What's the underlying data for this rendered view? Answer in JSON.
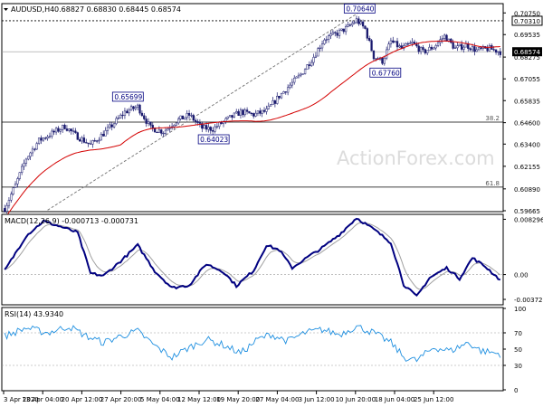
{
  "header": {
    "symbol": "AUDUSD,H4",
    "ohlc": "0.68827 0.68830 0.68445 0.68574"
  },
  "watermark": "ActionForex.com",
  "colors": {
    "up": "#1a1a6e",
    "down": "#1a1a6e",
    "ma": "#d40000",
    "macd": "#000080",
    "signal": "#a0a0a0",
    "rsi": "#1e8fe0",
    "grid": "#c8c8c8",
    "level": "#808080",
    "trend": "#707070"
  },
  "chart_data": [
    {
      "type": "candlestick",
      "title": "AUDUSD,H4",
      "ylim": [
        0.59665,
        0.7122
      ],
      "yticks": [
        "0.70750",
        "0.69535",
        "0.68275",
        "0.67055",
        "0.65835",
        "0.64600",
        "0.63400",
        "0.62155",
        "0.60890",
        "0.59665"
      ],
      "current_price": "0.68574",
      "ref_price": "0.70310",
      "xticks": [
        "3 Apr 2020",
        "13 Apr 04:00",
        "20 Apr 12:00",
        "27 Apr 20:00",
        "5 May 04:00",
        "12 May 12:00",
        "19 May 20:00",
        "27 May 04:00",
        "3 Jun 12:00",
        "10 Jun 20:00",
        "18 Jun 04:00",
        "25 Jun 12:00"
      ],
      "anchors": [
        {
          "i": 0,
          "p": 0.598
        },
        {
          "i": 5,
          "p": 0.611
        },
        {
          "i": 10,
          "p": 0.626
        },
        {
          "i": 16,
          "p": 0.636
        },
        {
          "i": 22,
          "p": 0.64
        },
        {
          "i": 28,
          "p": 0.644
        },
        {
          "i": 33,
          "p": 0.639
        },
        {
          "i": 40,
          "p": 0.6335
        },
        {
          "i": 48,
          "p": 0.642
        },
        {
          "i": 56,
          "p": 0.652
        },
        {
          "i": 62,
          "p": 0.655
        },
        {
          "i": 68,
          "p": 0.643
        },
        {
          "i": 74,
          "p": 0.641
        },
        {
          "i": 80,
          "p": 0.647
        },
        {
          "i": 86,
          "p": 0.6503
        },
        {
          "i": 92,
          "p": 0.643
        },
        {
          "i": 97,
          "p": 0.6425
        },
        {
          "i": 104,
          "p": 0.648
        },
        {
          "i": 110,
          "p": 0.652
        },
        {
          "i": 116,
          "p": 0.6505
        },
        {
          "i": 122,
          "p": 0.6525
        },
        {
          "i": 128,
          "p": 0.661
        },
        {
          "i": 133,
          "p": 0.667
        },
        {
          "i": 138,
          "p": 0.673
        },
        {
          "i": 144,
          "p": 0.683
        },
        {
          "i": 149,
          "p": 0.693
        },
        {
          "i": 155,
          "p": 0.696
        },
        {
          "i": 160,
          "p": 0.6995
        },
        {
          "i": 164,
          "p": 0.7035
        },
        {
          "i": 168,
          "p": 0.6985
        },
        {
          "i": 172,
          "p": 0.683
        },
        {
          "i": 176,
          "p": 0.6805
        },
        {
          "i": 180,
          "p": 0.6915
        },
        {
          "i": 185,
          "p": 0.6875
        },
        {
          "i": 190,
          "p": 0.6905
        },
        {
          "i": 195,
          "p": 0.6855
        },
        {
          "i": 200,
          "p": 0.6885
        },
        {
          "i": 205,
          "p": 0.6945
        },
        {
          "i": 210,
          "p": 0.6875
        },
        {
          "i": 215,
          "p": 0.6895
        },
        {
          "i": 220,
          "p": 0.6865
        },
        {
          "i": 226,
          "p": 0.6875
        },
        {
          "i": 231,
          "p": 0.6857
        }
      ],
      "annotations": [
        "0.70640",
        "0.70310",
        "0.67760",
        "0.65699",
        "0.64023"
      ],
      "levels": [
        {
          "label": "38.2",
          "price": 0.6463
        },
        {
          "label": "61.8",
          "price": 0.6099
        }
      ],
      "trendline": {
        "from": {
          "i": 20,
          "p": 0.597
        },
        "to": {
          "i": 170,
          "p": 0.7115
        }
      }
    },
    {
      "type": "line",
      "title": "MACD(12,26,9) -0.000713 -0.000731",
      "ylim": [
        -0.0044,
        0.0089
      ],
      "yticks": [
        "0.008296",
        "0.00",
        "-0.003725"
      ],
      "anchors": [
        {
          "i": 0,
          "v": 0.0006
        },
        {
          "i": 10,
          "v": 0.0058
        },
        {
          "i": 18,
          "v": 0.008
        },
        {
          "i": 26,
          "v": 0.0072
        },
        {
          "i": 34,
          "v": 0.0063
        },
        {
          "i": 40,
          "v": 0.0002
        },
        {
          "i": 46,
          "v": -0.0002
        },
        {
          "i": 54,
          "v": 0.002
        },
        {
          "i": 62,
          "v": 0.0044
        },
        {
          "i": 70,
          "v": 0.0005
        },
        {
          "i": 78,
          "v": -0.002
        },
        {
          "i": 86,
          "v": -0.0016
        },
        {
          "i": 94,
          "v": 0.0016
        },
        {
          "i": 102,
          "v": 0.0004
        },
        {
          "i": 108,
          "v": -0.0017
        },
        {
          "i": 116,
          "v": 0.0006
        },
        {
          "i": 122,
          "v": 0.0044
        },
        {
          "i": 128,
          "v": 0.0037
        },
        {
          "i": 134,
          "v": 0.001
        },
        {
          "i": 142,
          "v": 0.0028
        },
        {
          "i": 148,
          "v": 0.004
        },
        {
          "i": 156,
          "v": 0.006
        },
        {
          "i": 164,
          "v": 0.0085
        },
        {
          "i": 172,
          "v": 0.0068
        },
        {
          "i": 180,
          "v": 0.0048
        },
        {
          "i": 186,
          "v": -0.0015
        },
        {
          "i": 192,
          "v": -0.0033
        },
        {
          "i": 198,
          "v": -0.0005
        },
        {
          "i": 206,
          "v": 0.001
        },
        {
          "i": 212,
          "v": -0.0006
        },
        {
          "i": 218,
          "v": 0.0025
        },
        {
          "i": 224,
          "v": 0.0012
        },
        {
          "i": 231,
          "v": -0.0008
        }
      ]
    },
    {
      "type": "line",
      "title": "RSI(14) 43.9340",
      "ylim": [
        0,
        100
      ],
      "yticks": [
        "100",
        "70",
        "50",
        "30",
        "0"
      ],
      "anchors": [
        {
          "i": 0,
          "v": 66
        },
        {
          "i": 10,
          "v": 76
        },
        {
          "i": 20,
          "v": 70
        },
        {
          "i": 30,
          "v": 78
        },
        {
          "i": 38,
          "v": 66
        },
        {
          "i": 46,
          "v": 58
        },
        {
          "i": 54,
          "v": 66
        },
        {
          "i": 62,
          "v": 72
        },
        {
          "i": 70,
          "v": 54
        },
        {
          "i": 78,
          "v": 40
        },
        {
          "i": 86,
          "v": 52
        },
        {
          "i": 94,
          "v": 62
        },
        {
          "i": 102,
          "v": 55
        },
        {
          "i": 110,
          "v": 45
        },
        {
          "i": 118,
          "v": 62
        },
        {
          "i": 124,
          "v": 68
        },
        {
          "i": 132,
          "v": 60
        },
        {
          "i": 140,
          "v": 70
        },
        {
          "i": 148,
          "v": 74
        },
        {
          "i": 156,
          "v": 68
        },
        {
          "i": 164,
          "v": 78
        },
        {
          "i": 172,
          "v": 70
        },
        {
          "i": 180,
          "v": 58
        },
        {
          "i": 186,
          "v": 40
        },
        {
          "i": 192,
          "v": 36
        },
        {
          "i": 200,
          "v": 52
        },
        {
          "i": 208,
          "v": 48
        },
        {
          "i": 216,
          "v": 58
        },
        {
          "i": 222,
          "v": 48
        },
        {
          "i": 231,
          "v": 44
        }
      ]
    }
  ]
}
